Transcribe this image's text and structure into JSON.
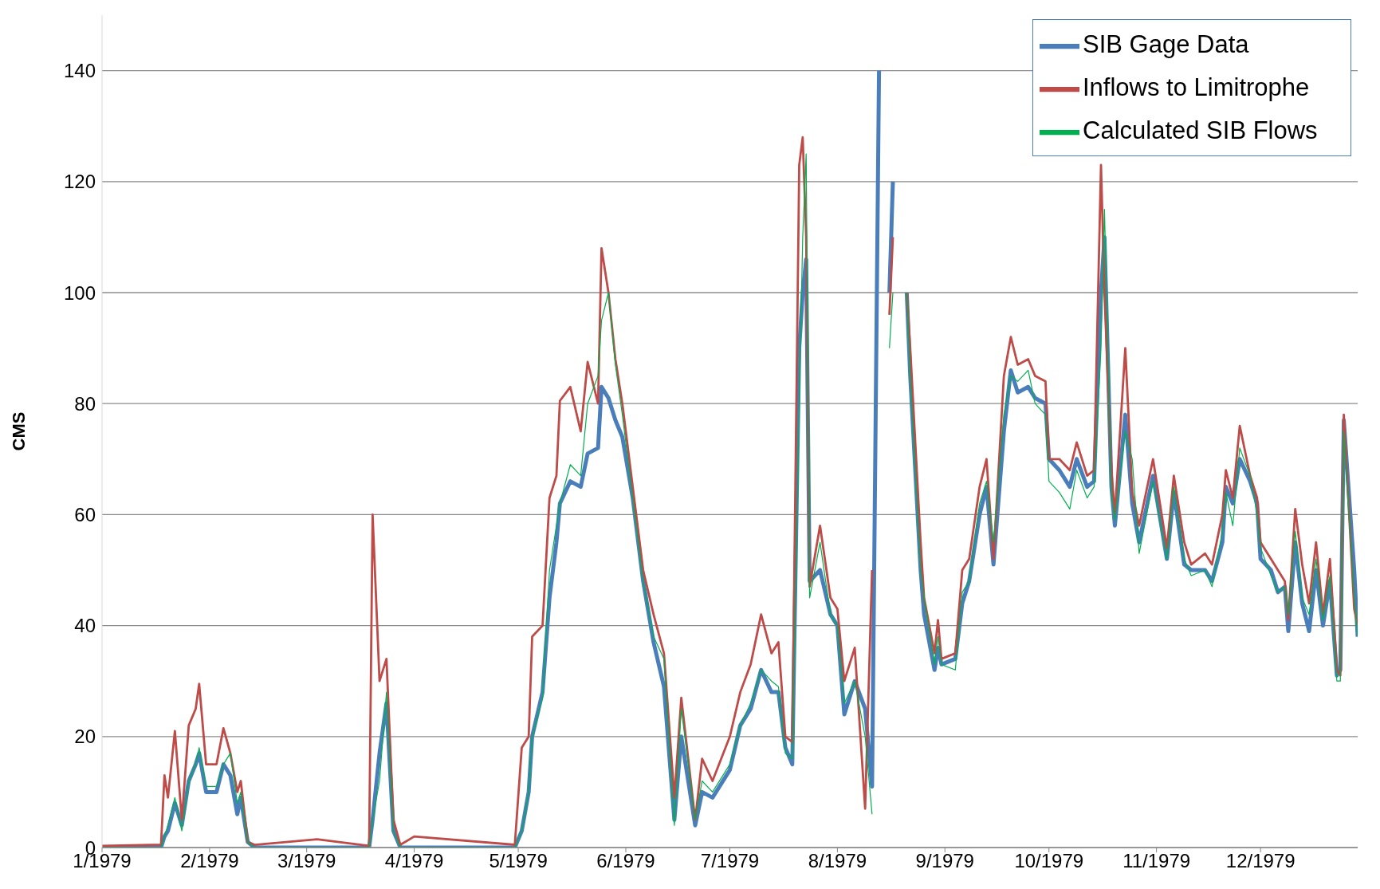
{
  "chart_data": {
    "type": "line",
    "ylabel": "CMS",
    "x": [
      "1979-01-01",
      "1979-01-18",
      "1979-01-19",
      "1979-01-20",
      "1979-01-22",
      "1979-01-24",
      "1979-01-26",
      "1979-01-28",
      "1979-01-29",
      "1979-01-31",
      "1979-02-03",
      "1979-02-05",
      "1979-02-07",
      "1979-02-09",
      "1979-02-10",
      "1979-02-12",
      "1979-02-14",
      "1979-03-04",
      "1979-03-19",
      "1979-03-20",
      "1979-03-22",
      "1979-03-24",
      "1979-03-26",
      "1979-03-28",
      "1979-04-01",
      "1979-04-30",
      "1979-05-02",
      "1979-05-04",
      "1979-05-05",
      "1979-05-08",
      "1979-05-10",
      "1979-05-12",
      "1979-05-13",
      "1979-05-16",
      "1979-05-19",
      "1979-05-21",
      "1979-05-24",
      "1979-05-25",
      "1979-05-27",
      "1979-05-29",
      "1979-05-31",
      "1979-06-03",
      "1979-06-06",
      "1979-06-09",
      "1979-06-12",
      "1979-06-15",
      "1979-06-17",
      "1979-06-21",
      "1979-06-23",
      "1979-06-26",
      "1979-07-01",
      "1979-07-04",
      "1979-07-07",
      "1979-07-10",
      "1979-07-13",
      "1979-07-15",
      "1979-07-17",
      "1979-07-19",
      "1979-07-21",
      "1979-07-22",
      "1979-07-23",
      "1979-07-24",
      "1979-07-27",
      "1979-07-30",
      "1979-08-01",
      "1979-08-03",
      "1979-08-06",
      "1979-08-09",
      "1979-08-11",
      "1979-08-13",
      "1979-08-15",
      "1979-08-16",
      "1979-08-17",
      "1979-08-18",
      "1979-08-21",
      "1979-08-22",
      "1979-08-25",
      "1979-08-26",
      "1979-08-29",
      "1979-08-30",
      "1979-08-31",
      "1979-09-04",
      "1979-09-06",
      "1979-09-08",
      "1979-09-11",
      "1979-09-13",
      "1979-09-15",
      "1979-09-18",
      "1979-09-20",
      "1979-09-22",
      "1979-09-25",
      "1979-09-27",
      "1979-09-30",
      "1979-10-01",
      "1979-10-04",
      "1979-10-07",
      "1979-10-09",
      "1979-10-12",
      "1979-10-14",
      "1979-10-16",
      "1979-10-17",
      "1979-10-19",
      "1979-10-20",
      "1979-10-23",
      "1979-10-25",
      "1979-10-27",
      "1979-10-31",
      "1979-11-04",
      "1979-11-06",
      "1979-11-09",
      "1979-11-11",
      "1979-11-15",
      "1979-11-17",
      "1979-11-20",
      "1979-11-21",
      "1979-11-23",
      "1979-11-25",
      "1979-11-28",
      "1979-11-30",
      "1979-12-01",
      "1979-12-04",
      "1979-12-06",
      "1979-12-08",
      "1979-12-09",
      "1979-12-11",
      "1979-12-13",
      "1979-12-15",
      "1979-12-17",
      "1979-12-19",
      "1979-12-21",
      "1979-12-23",
      "1979-12-24",
      "1979-12-25",
      "1979-12-28",
      "1979-12-29"
    ],
    "series": [
      {
        "name": "SIB Gage Data",
        "color": "#4a7ebb",
        "values": [
          0,
          0,
          2,
          3,
          8,
          4,
          12,
          15,
          17,
          10,
          10,
          15,
          13,
          6,
          9,
          1,
          0,
          0,
          0,
          5,
          17,
          26,
          3,
          0,
          0,
          0,
          3,
          10,
          20,
          28,
          45,
          55,
          62,
          66,
          65,
          71,
          72,
          83,
          81,
          77,
          74,
          63,
          48,
          37,
          29,
          5,
          20,
          4,
          10,
          9,
          14,
          22,
          25,
          32,
          28,
          28,
          18,
          15,
          90,
          100,
          106,
          48,
          50,
          42,
          40,
          24,
          30,
          25,
          11,
          140,
          null,
          100,
          120,
          null,
          100,
          85,
          50,
          42,
          32,
          36,
          33,
          34,
          44,
          48,
          60,
          65,
          51,
          75,
          86,
          82,
          83,
          81,
          80,
          70,
          68,
          65,
          70,
          65,
          66,
          100,
          110,
          65,
          58,
          78,
          62,
          55,
          67,
          52,
          64,
          51,
          50,
          50,
          48,
          55,
          65,
          62,
          70,
          66,
          62,
          52,
          50,
          46,
          47,
          39,
          55,
          44,
          39,
          50,
          40,
          48,
          31,
          32,
          77,
          50,
          38
        ]
      },
      {
        "name": "Inflows to Limitrophe",
        "color": "#be4b48",
        "values": [
          0.3,
          0.5,
          13,
          9,
          21,
          5,
          22,
          25,
          29.5,
          15,
          15,
          21.5,
          17,
          10,
          12,
          1,
          0.5,
          1.5,
          0.3,
          60,
          30,
          34,
          5,
          0.5,
          2,
          0.5,
          18,
          20,
          38,
          40,
          63,
          67,
          80.5,
          83,
          75,
          87.5,
          80,
          108,
          100,
          88,
          80,
          65,
          50,
          42,
          35,
          9,
          27,
          5,
          16,
          12,
          20,
          28,
          33,
          42,
          35,
          37,
          20,
          19,
          123,
          128,
          110,
          47,
          58,
          45,
          43,
          30,
          36,
          7,
          50,
          null,
          null,
          96,
          110,
          null,
          100,
          90,
          55,
          45,
          35,
          41,
          34,
          35,
          50,
          52,
          65,
          70,
          52,
          85,
          92,
          87,
          88,
          85,
          84,
          70,
          70,
          68,
          73,
          67,
          68,
          123,
          100,
          68,
          60,
          90,
          64,
          58,
          70,
          54,
          67,
          55,
          51,
          53,
          51,
          60,
          68,
          63,
          76,
          67,
          63,
          55,
          52,
          50,
          48,
          41,
          61,
          51,
          44,
          55,
          42,
          52,
          32,
          31,
          78,
          43,
          40
        ]
      },
      {
        "name": "Calculated SIB Flows",
        "color": "#00b050",
        "values": [
          0,
          0,
          2,
          4,
          9,
          3,
          12,
          15,
          18,
          11,
          11,
          15,
          17,
          8,
          10,
          1,
          0,
          0,
          0,
          5,
          12,
          28,
          3,
          0,
          0,
          0,
          3,
          10,
          20,
          27,
          50,
          58,
          62,
          69,
          67,
          80,
          85,
          95,
          100,
          87,
          78,
          63,
          48,
          38,
          34,
          4,
          25,
          5,
          12,
          10,
          15,
          22,
          26,
          32,
          30,
          29,
          17,
          16,
          80,
          110,
          125,
          45,
          55,
          42,
          40,
          26,
          30,
          20,
          6,
          null,
          null,
          90,
          100,
          null,
          100,
          85,
          50,
          45,
          33,
          38,
          33,
          32,
          46,
          48,
          62,
          66,
          55,
          78,
          85,
          84,
          86,
          80,
          78,
          66,
          64,
          61,
          68,
          63,
          65,
          90,
          115,
          64,
          59,
          75,
          70,
          53,
          66,
          52,
          65,
          52,
          49,
          50,
          47,
          57,
          64,
          58,
          72,
          67,
          60,
          54,
          49,
          46,
          47,
          42,
          57,
          45,
          42,
          52,
          41,
          49,
          30,
          30,
          75,
          45,
          38
        ]
      }
    ],
    "xlim": [
      "1979-01-01",
      "1979-12-29"
    ],
    "xticks": [
      {
        "value": "1979-01-01",
        "label": "1/1979"
      },
      {
        "value": "1979-02-01",
        "label": "2/1979"
      },
      {
        "value": "1979-03-01",
        "label": "3/1979"
      },
      {
        "value": "1979-04-01",
        "label": "4/1979"
      },
      {
        "value": "1979-05-01",
        "label": "5/1979"
      },
      {
        "value": "1979-06-01",
        "label": "6/1979"
      },
      {
        "value": "1979-07-01",
        "label": "7/1979"
      },
      {
        "value": "1979-08-01",
        "label": "8/1979"
      },
      {
        "value": "1979-09-01",
        "label": "9/1979"
      },
      {
        "value": "1979-10-01",
        "label": "10/1979"
      },
      {
        "value": "1979-11-01",
        "label": "11/1979"
      },
      {
        "value": "1979-12-01",
        "label": "12/1979"
      }
    ],
    "ylim": [
      0,
      150
    ],
    "yticks": [
      0,
      20,
      40,
      60,
      80,
      100,
      120,
      140
    ],
    "grid": "y",
    "legend": "top right",
    "marker": "none",
    "line_style": "solid"
  }
}
